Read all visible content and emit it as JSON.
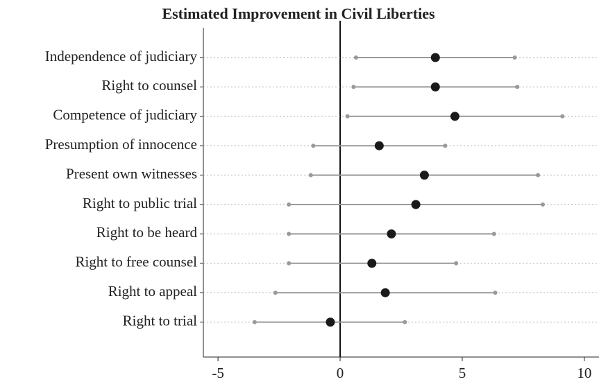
{
  "chart_data": {
    "type": "dot_interval",
    "title": "Estimated Improvement in Civil Liberties",
    "categories": [
      "Independence of judiciary",
      "Right to counsel",
      "Competence of judiciary",
      "Presumption of innocence",
      "Present own witnesses",
      "Right to public trial",
      "Right to be heard",
      "Right to free counsel",
      "Right to appeal",
      "Right to trial"
    ],
    "values": [
      3.9,
      3.9,
      4.7,
      1.6,
      3.45,
      3.1,
      2.1,
      1.3,
      1.85,
      -0.4
    ],
    "lower": [
      0.65,
      0.55,
      0.3,
      -1.1,
      -1.2,
      -2.1,
      -2.1,
      -2.1,
      -2.65,
      -3.5
    ],
    "upper": [
      7.15,
      7.25,
      9.1,
      4.3,
      8.1,
      8.3,
      6.3,
      4.75,
      6.35,
      2.65
    ],
    "point_color": "#1a1a1a",
    "interval_color": "#999999",
    "xlim": [
      -5.6,
      10.6
    ],
    "xticks": [
      -5,
      0,
      5,
      10
    ],
    "grid": true
  }
}
